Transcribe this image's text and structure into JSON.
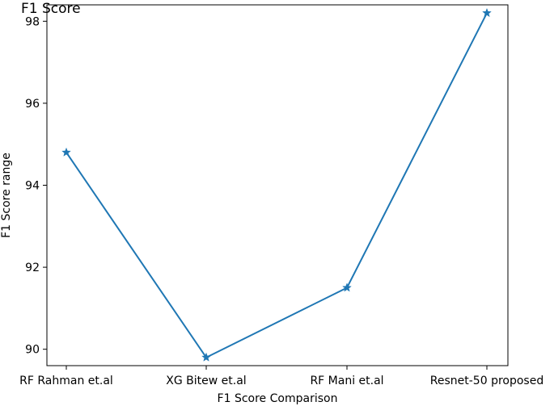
{
  "chart_data": {
    "type": "line",
    "title": "F1 Score",
    "xlabel": "F1 Score Comparison",
    "ylabel": "F1 Score range",
    "categories": [
      "RF Rahman et.al",
      "XG Bitew et.al",
      "RF Mani et.al",
      "Resnet-50 proposed"
    ],
    "series": [
      {
        "values": [
          94.8,
          89.8,
          91.5,
          98.2
        ],
        "color": "#1f77b4",
        "marker": "star"
      }
    ],
    "yticks": [
      90,
      92,
      94,
      96,
      98
    ],
    "ylim": [
      89.6,
      98.4
    ],
    "grid": false,
    "legend": "none"
  }
}
